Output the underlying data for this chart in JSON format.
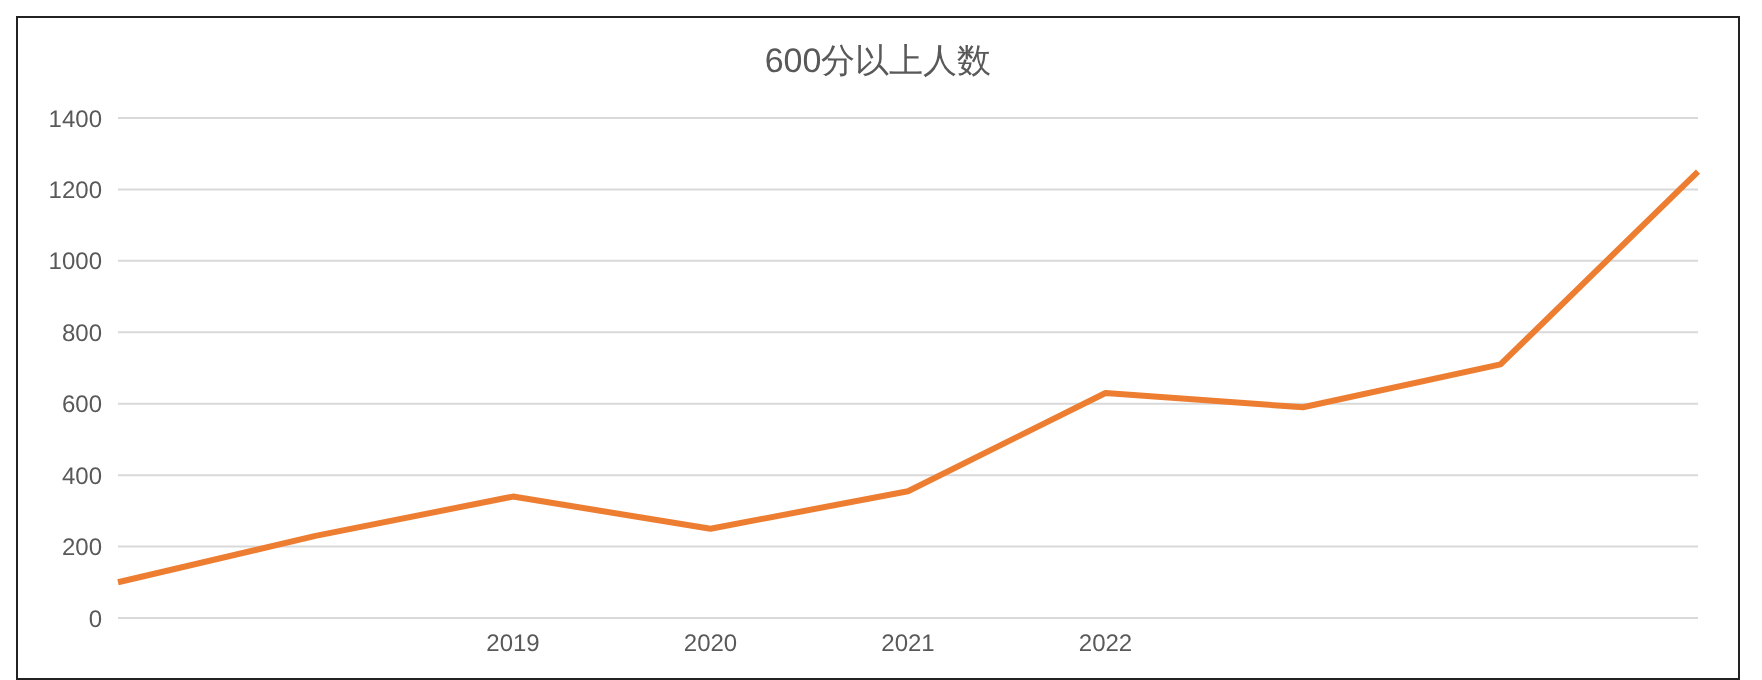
{
  "chart_data": {
    "type": "line",
    "title": "600分以上人数",
    "categories": [
      null,
      null,
      "2019",
      "2020",
      "2021",
      "2022",
      null,
      null,
      null
    ],
    "series": [
      {
        "color": "#ed7d31",
        "values": [
          100,
          230,
          340,
          250,
          355,
          630,
          590,
          710,
          1250
        ]
      }
    ],
    "ylim": [
      0,
      1400
    ],
    "yticks": [
      0,
      200,
      400,
      600,
      800,
      1000,
      1200,
      1400
    ],
    "grid": "y",
    "legend": false,
    "marker": "none",
    "line_style": "solid"
  }
}
